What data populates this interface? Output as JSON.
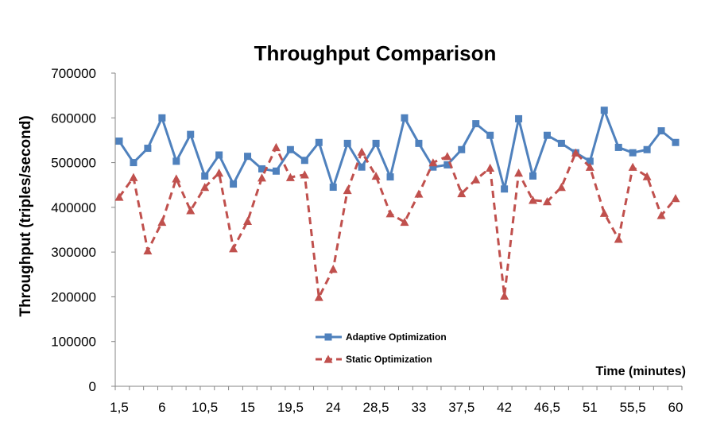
{
  "chart_data": {
    "type": "line",
    "title": "Throughput Comparison",
    "xlabel": "Time (minutes)",
    "ylabel": "Throughput  (triples/second)",
    "ylim": [
      0,
      700000
    ],
    "yticks": [
      "0",
      "100000",
      "200000",
      "300000",
      "400000",
      "500000",
      "600000",
      "700000"
    ],
    "x": [
      "1,5",
      "3",
      "4,5",
      "6",
      "7,5",
      "9",
      "10,5",
      "12",
      "13,5",
      "15",
      "16,5",
      "18",
      "19,5",
      "21",
      "22,5",
      "24",
      "25,5",
      "27",
      "28,5",
      "30",
      "31,5",
      "33",
      "34,5",
      "36",
      "37,5",
      "39",
      "40,5",
      "42",
      "43,5",
      "45",
      "46,5",
      "48",
      "49,5",
      "51",
      "52,5",
      "54",
      "55,5",
      "57",
      "58,5",
      "60"
    ],
    "xtick_labels": [
      "1,5",
      "6",
      "10,5",
      "15",
      "19,5",
      "24",
      "28,5",
      "33",
      "37,5",
      "42",
      "46,5",
      "51",
      "55,5",
      "60"
    ],
    "series": [
      {
        "name": "Adaptive Optimization",
        "color": "#4F81BD",
        "marker": "square",
        "line_style": "solid",
        "values": [
          548000,
          500000,
          532000,
          600000,
          503000,
          563000,
          470000,
          517000,
          452000,
          514000,
          486000,
          481000,
          529000,
          505000,
          545000,
          445000,
          543000,
          490000,
          543000,
          468000,
          600000,
          543000,
          490000,
          495000,
          529000,
          587000,
          561000,
          441000,
          598000,
          470000,
          561000,
          543000,
          522000,
          503000,
          617000,
          534000,
          522000,
          529000,
          571000,
          545000
        ]
      },
      {
        "name": "Static Optimization",
        "color": "#C0504D",
        "marker": "triangle",
        "line_style": "dashed",
        "values": [
          423000,
          467000,
          303000,
          367000,
          464000,
          393000,
          445000,
          477000,
          308000,
          369000,
          466000,
          534000,
          467000,
          473000,
          199000,
          262000,
          438000,
          524000,
          470000,
          386000,
          367000,
          430000,
          500000,
          514000,
          431000,
          462000,
          488000,
          202000,
          477000,
          416000,
          413000,
          445000,
          522000,
          490000,
          387000,
          329000,
          490000,
          469000,
          382000,
          420000
        ]
      }
    ],
    "grid": false,
    "legend_position": "bottom-center inside plot"
  }
}
